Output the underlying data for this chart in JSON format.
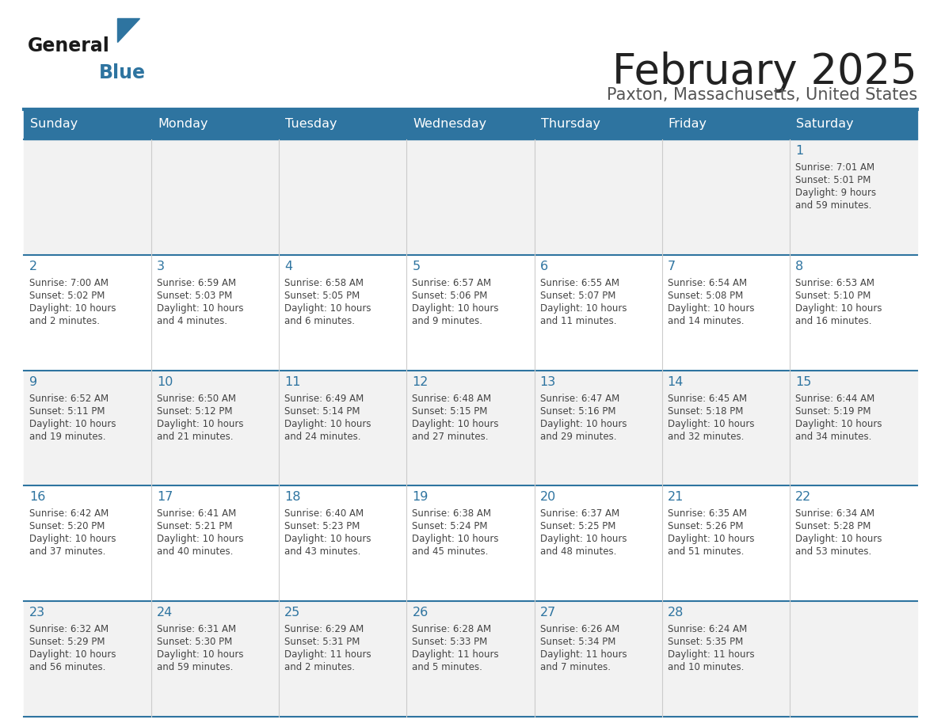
{
  "title": "February 2025",
  "subtitle": "Paxton, Massachusetts, United States",
  "header_bg": "#2E74A0",
  "header_text_color": "#FFFFFF",
  "cell_bg_odd": "#F2F2F2",
  "cell_bg_even": "#FFFFFF",
  "day_headers": [
    "Sunday",
    "Monday",
    "Tuesday",
    "Wednesday",
    "Thursday",
    "Friday",
    "Saturday"
  ],
  "title_color": "#222222",
  "subtitle_color": "#555555",
  "day_num_color": "#2E74A0",
  "info_color": "#444444",
  "line_color": "#2E74A0",
  "days": [
    {
      "day": 1,
      "col": 6,
      "row": 0,
      "sunrise": "7:01 AM",
      "sunset": "5:01 PM",
      "daylight_h": "9 hours",
      "daylight_m": "and 59 minutes."
    },
    {
      "day": 2,
      "col": 0,
      "row": 1,
      "sunrise": "7:00 AM",
      "sunset": "5:02 PM",
      "daylight_h": "10 hours",
      "daylight_m": "and 2 minutes."
    },
    {
      "day": 3,
      "col": 1,
      "row": 1,
      "sunrise": "6:59 AM",
      "sunset": "5:03 PM",
      "daylight_h": "10 hours",
      "daylight_m": "and 4 minutes."
    },
    {
      "day": 4,
      "col": 2,
      "row": 1,
      "sunrise": "6:58 AM",
      "sunset": "5:05 PM",
      "daylight_h": "10 hours",
      "daylight_m": "and 6 minutes."
    },
    {
      "day": 5,
      "col": 3,
      "row": 1,
      "sunrise": "6:57 AM",
      "sunset": "5:06 PM",
      "daylight_h": "10 hours",
      "daylight_m": "and 9 minutes."
    },
    {
      "day": 6,
      "col": 4,
      "row": 1,
      "sunrise": "6:55 AM",
      "sunset": "5:07 PM",
      "daylight_h": "10 hours",
      "daylight_m": "and 11 minutes."
    },
    {
      "day": 7,
      "col": 5,
      "row": 1,
      "sunrise": "6:54 AM",
      "sunset": "5:08 PM",
      "daylight_h": "10 hours",
      "daylight_m": "and 14 minutes."
    },
    {
      "day": 8,
      "col": 6,
      "row": 1,
      "sunrise": "6:53 AM",
      "sunset": "5:10 PM",
      "daylight_h": "10 hours",
      "daylight_m": "and 16 minutes."
    },
    {
      "day": 9,
      "col": 0,
      "row": 2,
      "sunrise": "6:52 AM",
      "sunset": "5:11 PM",
      "daylight_h": "10 hours",
      "daylight_m": "and 19 minutes."
    },
    {
      "day": 10,
      "col": 1,
      "row": 2,
      "sunrise": "6:50 AM",
      "sunset": "5:12 PM",
      "daylight_h": "10 hours",
      "daylight_m": "and 21 minutes."
    },
    {
      "day": 11,
      "col": 2,
      "row": 2,
      "sunrise": "6:49 AM",
      "sunset": "5:14 PM",
      "daylight_h": "10 hours",
      "daylight_m": "and 24 minutes."
    },
    {
      "day": 12,
      "col": 3,
      "row": 2,
      "sunrise": "6:48 AM",
      "sunset": "5:15 PM",
      "daylight_h": "10 hours",
      "daylight_m": "and 27 minutes."
    },
    {
      "day": 13,
      "col": 4,
      "row": 2,
      "sunrise": "6:47 AM",
      "sunset": "5:16 PM",
      "daylight_h": "10 hours",
      "daylight_m": "and 29 minutes."
    },
    {
      "day": 14,
      "col": 5,
      "row": 2,
      "sunrise": "6:45 AM",
      "sunset": "5:18 PM",
      "daylight_h": "10 hours",
      "daylight_m": "and 32 minutes."
    },
    {
      "day": 15,
      "col": 6,
      "row": 2,
      "sunrise": "6:44 AM",
      "sunset": "5:19 PM",
      "daylight_h": "10 hours",
      "daylight_m": "and 34 minutes."
    },
    {
      "day": 16,
      "col": 0,
      "row": 3,
      "sunrise": "6:42 AM",
      "sunset": "5:20 PM",
      "daylight_h": "10 hours",
      "daylight_m": "and 37 minutes."
    },
    {
      "day": 17,
      "col": 1,
      "row": 3,
      "sunrise": "6:41 AM",
      "sunset": "5:21 PM",
      "daylight_h": "10 hours",
      "daylight_m": "and 40 minutes."
    },
    {
      "day": 18,
      "col": 2,
      "row": 3,
      "sunrise": "6:40 AM",
      "sunset": "5:23 PM",
      "daylight_h": "10 hours",
      "daylight_m": "and 43 minutes."
    },
    {
      "day": 19,
      "col": 3,
      "row": 3,
      "sunrise": "6:38 AM",
      "sunset": "5:24 PM",
      "daylight_h": "10 hours",
      "daylight_m": "and 45 minutes."
    },
    {
      "day": 20,
      "col": 4,
      "row": 3,
      "sunrise": "6:37 AM",
      "sunset": "5:25 PM",
      "daylight_h": "10 hours",
      "daylight_m": "and 48 minutes."
    },
    {
      "day": 21,
      "col": 5,
      "row": 3,
      "sunrise": "6:35 AM",
      "sunset": "5:26 PM",
      "daylight_h": "10 hours",
      "daylight_m": "and 51 minutes."
    },
    {
      "day": 22,
      "col": 6,
      "row": 3,
      "sunrise": "6:34 AM",
      "sunset": "5:28 PM",
      "daylight_h": "10 hours",
      "daylight_m": "and 53 minutes."
    },
    {
      "day": 23,
      "col": 0,
      "row": 4,
      "sunrise": "6:32 AM",
      "sunset": "5:29 PM",
      "daylight_h": "10 hours",
      "daylight_m": "and 56 minutes."
    },
    {
      "day": 24,
      "col": 1,
      "row": 4,
      "sunrise": "6:31 AM",
      "sunset": "5:30 PM",
      "daylight_h": "10 hours",
      "daylight_m": "and 59 minutes."
    },
    {
      "day": 25,
      "col": 2,
      "row": 4,
      "sunrise": "6:29 AM",
      "sunset": "5:31 PM",
      "daylight_h": "11 hours",
      "daylight_m": "and 2 minutes."
    },
    {
      "day": 26,
      "col": 3,
      "row": 4,
      "sunrise": "6:28 AM",
      "sunset": "5:33 PM",
      "daylight_h": "11 hours",
      "daylight_m": "and 5 minutes."
    },
    {
      "day": 27,
      "col": 4,
      "row": 4,
      "sunrise": "6:26 AM",
      "sunset": "5:34 PM",
      "daylight_h": "11 hours",
      "daylight_m": "and 7 minutes."
    },
    {
      "day": 28,
      "col": 5,
      "row": 4,
      "sunrise": "6:24 AM",
      "sunset": "5:35 PM",
      "daylight_h": "11 hours",
      "daylight_m": "and 10 minutes."
    }
  ]
}
